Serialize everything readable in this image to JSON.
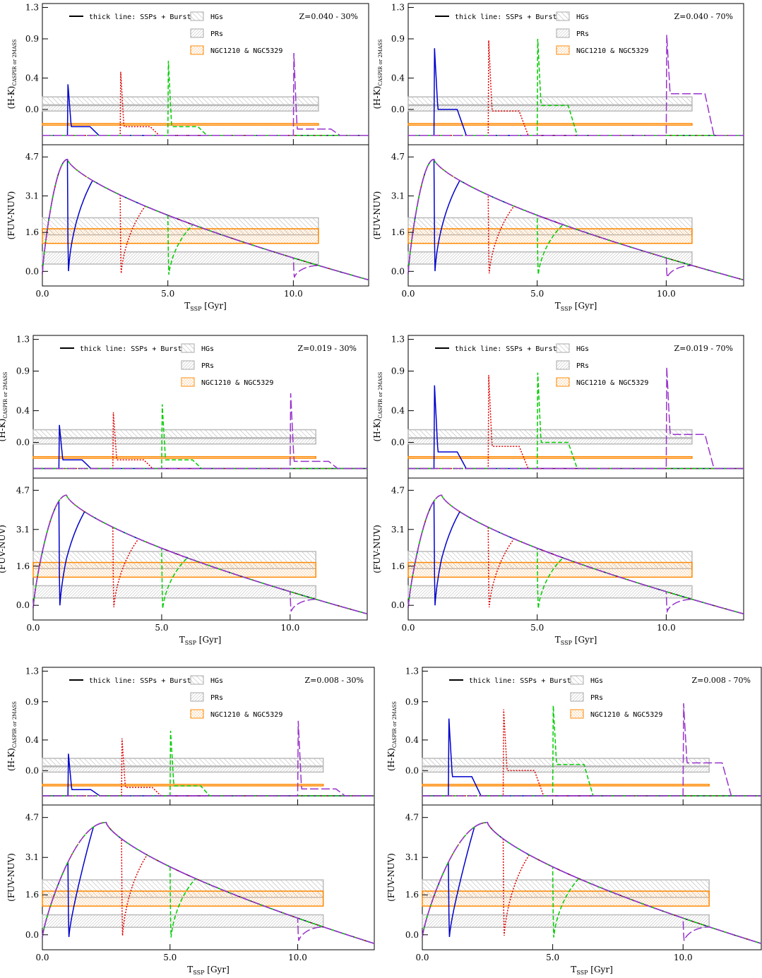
{
  "colors": {
    "ssp_burst": "#0000cc",
    "burst_3gyr": "#dd0000",
    "burst_5gyr": "#00cc00",
    "burst_10gyr": "#9933cc",
    "hgs_band": "#999999",
    "prs_band": "#999999",
    "ngc_band": "#ff8800",
    "axis": "#000000"
  },
  "legend": {
    "thick_line": "thick line: SSPs + Burst",
    "hgs": "HGs",
    "prs": "PRs",
    "ngc": "NGC1210 & NGC5329"
  },
  "axes": {
    "xlabel_main": "T",
    "xlabel_sub": "SSP",
    "xlabel_unit": "[Gyr]",
    "hk_ylabel_main": "(H-K)",
    "hk_ylabel_sub": "CASPIR or 2MASS",
    "fuv_ylabel": "(FUV-NUV)",
    "x_ticks": [
      "0.0",
      "5.0",
      "10.0"
    ],
    "hk_ticks": [
      "1.3",
      "0.9",
      "0.4",
      "0.0"
    ],
    "fuv_ticks": [
      "4.7",
      "3.1",
      "1.6",
      "0.0"
    ]
  },
  "chart_data": [
    {
      "type": "line",
      "annotation": "Z=0.040 - 30%",
      "xlim": [
        0,
        13
      ],
      "hk_ylim": [
        -0.45,
        1.35
      ],
      "fuv_ylim": [
        -0.6,
        5.2
      ],
      "bands": {
        "hk_hgs": [
          0.05,
          0.16
        ],
        "hk_prs": [
          -0.02,
          0.06
        ],
        "hk_ngc": [
          -0.2,
          -0.18
        ],
        "fuv_hgs": [
          1.5,
          2.2
        ],
        "fuv_prs": [
          0.3,
          0.8
        ],
        "fuv_ngc": [
          1.15,
          1.75
        ]
      },
      "burst_times": [
        1.0,
        3.1,
        5.0,
        10.0
      ],
      "hk_peaks": [
        0.32,
        0.48,
        0.62,
        0.72
      ],
      "hk_tail": [
        -0.22,
        -0.22,
        -0.22,
        -0.25
      ],
      "fuv_peak": 4.6,
      "fuv_peak_t": 1.0
    },
    {
      "type": "line",
      "annotation": "Z=0.040 - 70%",
      "xlim": [
        0,
        13
      ],
      "hk_ylim": [
        -0.45,
        1.35
      ],
      "fuv_ylim": [
        -0.6,
        5.2
      ],
      "bands": {
        "hk_hgs": [
          0.05,
          0.16
        ],
        "hk_prs": [
          -0.02,
          0.06
        ],
        "hk_ngc": [
          -0.2,
          -0.18
        ],
        "fuv_hgs": [
          1.5,
          2.2
        ],
        "fuv_prs": [
          0.3,
          0.8
        ],
        "fuv_ngc": [
          1.15,
          1.75
        ]
      },
      "burst_times": [
        1.0,
        3.1,
        5.0,
        10.0
      ],
      "hk_peaks": [
        0.78,
        0.88,
        0.9,
        0.95
      ],
      "hk_tail": [
        0.0,
        -0.02,
        0.05,
        0.2
      ],
      "fuv_peak": 4.6,
      "fuv_peak_t": 1.0
    },
    {
      "type": "line",
      "annotation": "Z=0.019 - 30%",
      "xlim": [
        0,
        13
      ],
      "hk_ylim": [
        -0.45,
        1.35
      ],
      "fuv_ylim": [
        -0.6,
        5.2
      ],
      "bands": {
        "hk_hgs": [
          0.05,
          0.16
        ],
        "hk_prs": [
          -0.02,
          0.06
        ],
        "hk_ngc": [
          -0.2,
          -0.18
        ],
        "fuv_hgs": [
          1.5,
          2.2
        ],
        "fuv_prs": [
          0.3,
          0.8
        ],
        "fuv_ngc": [
          1.15,
          1.75
        ]
      },
      "burst_times": [
        1.0,
        3.1,
        5.0,
        10.0
      ],
      "hk_peaks": [
        0.22,
        0.38,
        0.48,
        0.62
      ],
      "hk_tail": [
        -0.22,
        -0.22,
        -0.22,
        -0.24
      ],
      "fuv_peak": 4.5,
      "fuv_peak_t": 1.3
    },
    {
      "type": "line",
      "annotation": "Z=0.019 - 70%",
      "xlim": [
        0,
        13
      ],
      "hk_ylim": [
        -0.45,
        1.35
      ],
      "fuv_ylim": [
        -0.6,
        5.2
      ],
      "bands": {
        "hk_hgs": [
          0.05,
          0.16
        ],
        "hk_prs": [
          -0.02,
          0.06
        ],
        "hk_ngc": [
          -0.2,
          -0.18
        ],
        "fuv_hgs": [
          1.5,
          2.2
        ],
        "fuv_prs": [
          0.3,
          0.8
        ],
        "fuv_ngc": [
          1.15,
          1.75
        ]
      },
      "burst_times": [
        1.0,
        3.1,
        5.0,
        10.0
      ],
      "hk_peaks": [
        0.72,
        0.85,
        0.88,
        0.95
      ],
      "hk_tail": [
        -0.12,
        -0.05,
        0.0,
        0.1
      ],
      "fuv_peak": 4.5,
      "fuv_peak_t": 1.3
    },
    {
      "type": "line",
      "annotation": "Z=0.008 - 30%",
      "xlim": [
        0,
        13
      ],
      "hk_ylim": [
        -0.45,
        1.35
      ],
      "fuv_ylim": [
        -0.6,
        5.2
      ],
      "bands": {
        "hk_hgs": [
          0.05,
          0.16
        ],
        "hk_prs": [
          -0.02,
          0.06
        ],
        "hk_ngc": [
          -0.2,
          -0.18
        ],
        "fuv_hgs": [
          1.5,
          2.2
        ],
        "fuv_prs": [
          0.3,
          0.8
        ],
        "fuv_ngc": [
          1.15,
          1.75
        ]
      },
      "burst_times": [
        1.0,
        3.1,
        5.0,
        10.0
      ],
      "hk_peaks": [
        0.22,
        0.42,
        0.52,
        0.65
      ],
      "hk_tail": [
        -0.25,
        -0.22,
        -0.2,
        -0.24
      ],
      "fuv_peak": 4.5,
      "fuv_peak_t": 2.5
    },
    {
      "type": "line",
      "annotation": "Z=0.008 - 70%",
      "xlim": [
        0,
        13
      ],
      "hk_ylim": [
        -0.45,
        1.35
      ],
      "fuv_ylim": [
        -0.6,
        5.2
      ],
      "bands": {
        "hk_hgs": [
          0.05,
          0.16
        ],
        "hk_prs": [
          -0.02,
          0.06
        ],
        "hk_ngc": [
          -0.2,
          -0.18
        ],
        "fuv_hgs": [
          1.5,
          2.2
        ],
        "fuv_prs": [
          0.3,
          0.8
        ],
        "fuv_ngc": [
          1.15,
          1.75
        ]
      },
      "burst_times": [
        1.0,
        3.1,
        5.0,
        10.0
      ],
      "hk_peaks": [
        0.68,
        0.8,
        0.85,
        0.88
      ],
      "hk_tail": [
        -0.08,
        0.0,
        0.08,
        0.1
      ],
      "fuv_peak": 4.5,
      "fuv_peak_t": 2.5
    }
  ]
}
